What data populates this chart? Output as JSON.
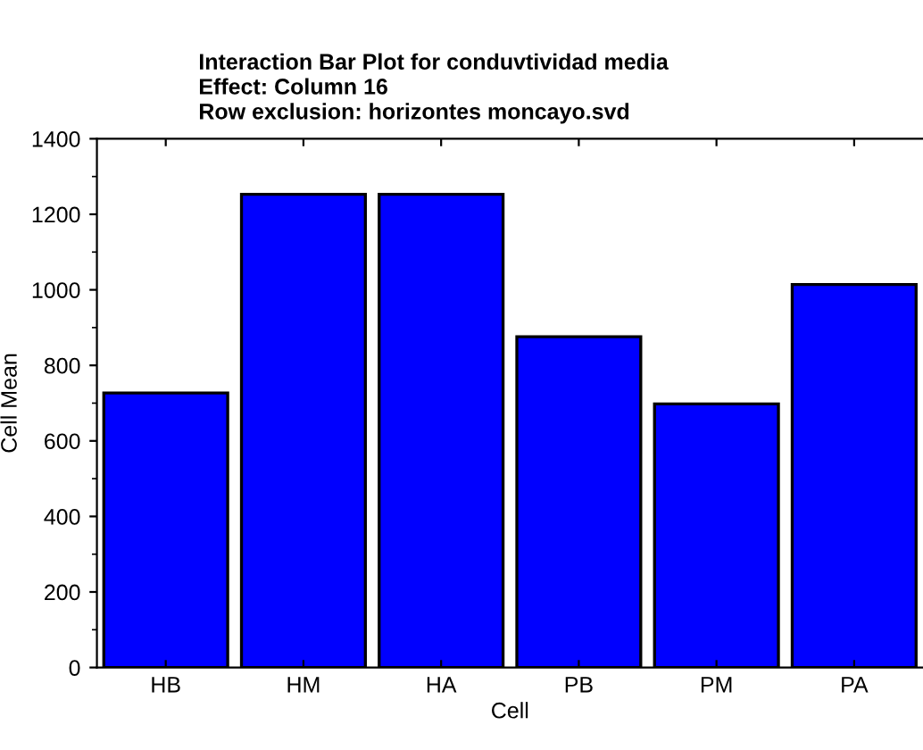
{
  "chart_data": {
    "type": "bar",
    "title": "Interaction Bar Plot for conduvtividad media\nEffect: Column 16\nRow exclusion: horizontes moncayo.svd",
    "xlabel": "Cell",
    "ylabel": "Cell Mean",
    "categories": [
      "HB",
      "HM",
      "HA",
      "PB",
      "PM",
      "PA"
    ],
    "values": [
      727,
      1253,
      1253,
      876,
      698,
      1014
    ],
    "color": "#0000ff",
    "ylim": [
      0,
      1400
    ],
    "yticks": [
      0,
      200,
      400,
      600,
      800,
      1000,
      1200,
      1400
    ],
    "grid": false,
    "legend": false
  }
}
